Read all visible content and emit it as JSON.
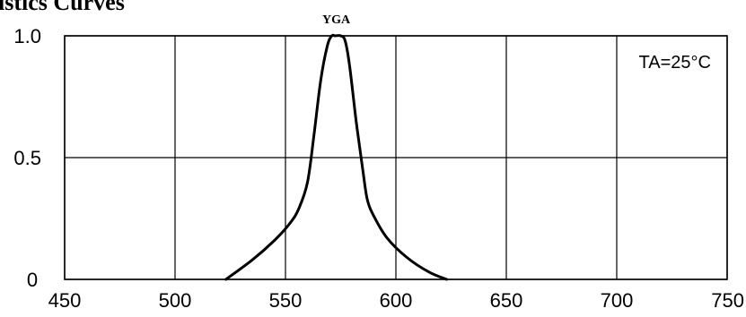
{
  "heading": "istics Curves",
  "chart_data": {
    "type": "line",
    "title": "",
    "xlabel": "",
    "ylabel": "",
    "xlim": [
      450,
      750
    ],
    "ylim": [
      0,
      1.0
    ],
    "x_ticks": [
      "450",
      "500",
      "550",
      "600",
      "650",
      "700",
      "750"
    ],
    "y_ticks": [
      "0",
      "0.5",
      "1.0"
    ],
    "grid": true,
    "series": [
      {
        "name": "YGA",
        "x": [
          523,
          535,
          545,
          552,
          556,
          560,
          563,
          566,
          569,
          571,
          572.5,
          575,
          577,
          579,
          582,
          585,
          587,
          590,
          596,
          605,
          615,
          623
        ],
        "y": [
          0,
          0.08,
          0.16,
          0.23,
          0.29,
          0.4,
          0.6,
          0.82,
          0.96,
          1.0,
          1.0,
          1.0,
          0.98,
          0.88,
          0.65,
          0.45,
          0.33,
          0.26,
          0.17,
          0.09,
          0.03,
          0
        ]
      }
    ],
    "annotation": "TA=25°C",
    "line_color": "#000000"
  }
}
